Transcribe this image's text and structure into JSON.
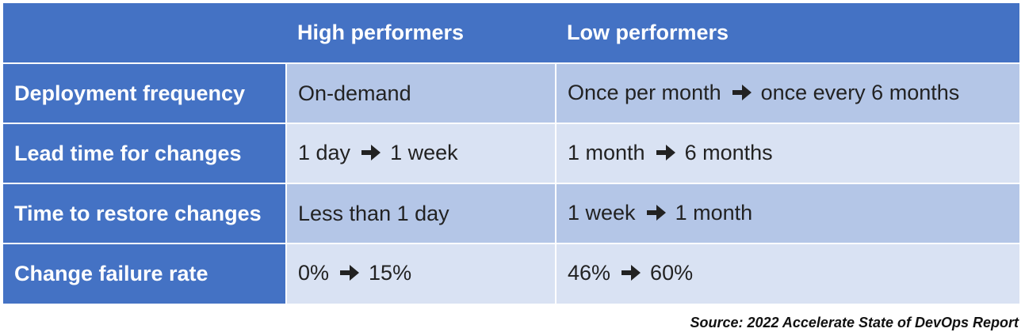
{
  "table": {
    "header": {
      "corner": "",
      "high": "High performers",
      "low": "Low performers"
    },
    "rows": [
      {
        "metric": "Deployment frequency",
        "high": {
          "text": "On-demand",
          "from": "",
          "to": ""
        },
        "low": {
          "from": "Once per month",
          "to": "once every 6 months"
        }
      },
      {
        "metric": "Lead time for changes",
        "high": {
          "from": "1 day",
          "to": "1 week"
        },
        "low": {
          "from": "1 month",
          "to": "6 months"
        }
      },
      {
        "metric": "Time to restore changes",
        "high": {
          "text": "Less than 1 day"
        },
        "low": {
          "from": "1 week",
          "to": "1 month"
        }
      },
      {
        "metric": "Change failure rate",
        "high": {
          "from": "0%",
          "to": "15%"
        },
        "low": {
          "from": "46%",
          "to": "60%"
        }
      }
    ]
  },
  "source": "Source: 2022 Accelerate State of DevOps Report",
  "icons": {
    "range_arrow": "arrow-right-icon"
  },
  "colors": {
    "header_bg": "#4472c4",
    "row_odd_bg": "#b4c6e7",
    "row_even_bg": "#d9e2f3"
  }
}
